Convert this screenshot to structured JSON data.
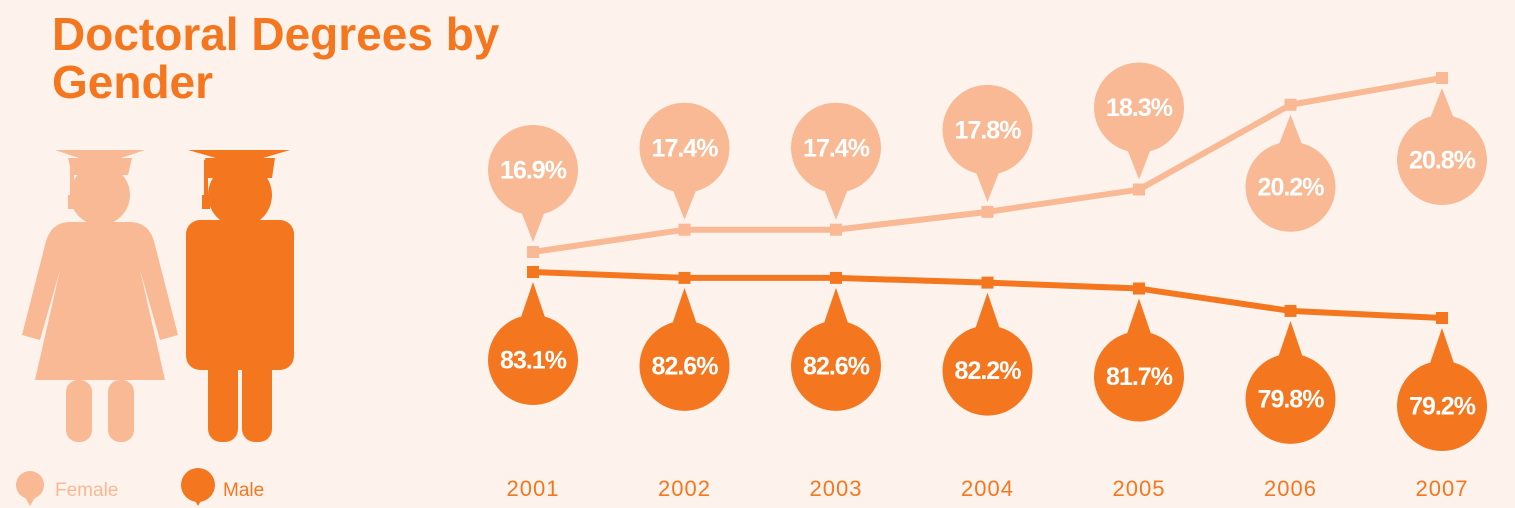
{
  "chart_data": {
    "type": "line",
    "title": "Doctoral Degrees by Gender",
    "categories": [
      "2001",
      "2002",
      "2003",
      "2004",
      "2005",
      "2006",
      "2007"
    ],
    "series": [
      {
        "name": "Female",
        "color": "#f8b994",
        "values": [
          16.9,
          17.4,
          17.4,
          17.8,
          18.3,
          20.2,
          20.8
        ],
        "value_labels": [
          "16.9%",
          "17.4%",
          "17.4%",
          "17.8%",
          "18.3%",
          "20.2%",
          "20.8%"
        ]
      },
      {
        "name": "Male",
        "color": "#f47720",
        "values": [
          83.1,
          82.6,
          82.6,
          82.2,
          81.7,
          79.8,
          79.2
        ],
        "value_labels": [
          "83.1%",
          "82.6%",
          "82.6%",
          "82.2%",
          "81.7%",
          "79.8%",
          "79.2%"
        ]
      }
    ]
  }
}
